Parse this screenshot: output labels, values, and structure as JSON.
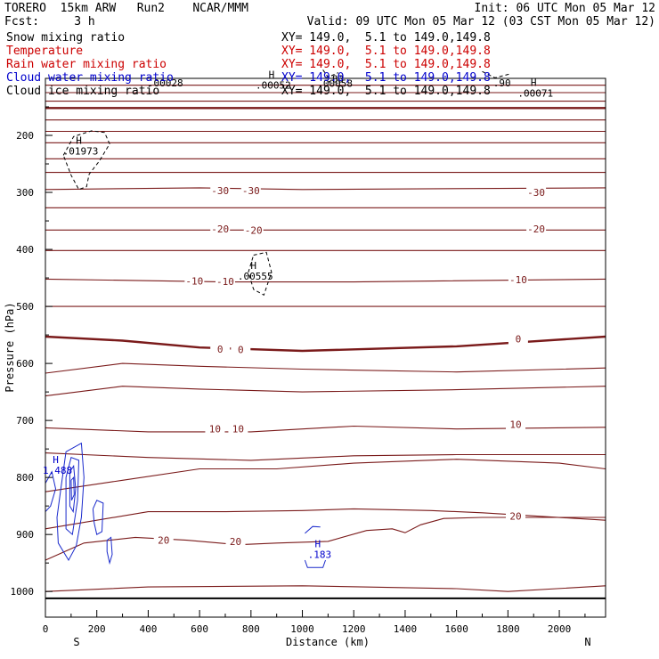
{
  "header": {
    "line1_left": "TORERO  15km ARW   Run2    NCAR/MMM",
    "line1_right": "Init: 06 UTC Mon 05 Mar 12",
    "line2_left": "Fcst:     3 h",
    "line2_right": "Valid: 09 UTC Mon 05 Mar 12 (03 CST Mon 05 Mar 12)"
  },
  "legend": [
    {
      "name": "Snow mixing ratio",
      "info": "XY= 149.0,  5.1 to 149.0,149.8",
      "color": "#000000"
    },
    {
      "name": "Temperature",
      "info": "XY= 149.0,  5.1 to 149.0,149.8",
      "color": "#cc0000"
    },
    {
      "name": "Rain water mixing ratio",
      "info": "XY= 149.0,  5.1 to 149.0,149.8",
      "color": "#cc0000"
    },
    {
      "name": "Cloud water mixing ratio",
      "info": "XY= 149.0,  5.1 to 149.0,149.8",
      "color": "#0000cc"
    },
    {
      "name": "Cloud ice mixing ratio",
      "info": "XY= 149.0,  5.1 to 149.0,149.8",
      "color": "#000000"
    }
  ],
  "colors": {
    "temperature": "#7a1a1a",
    "cloud_water": "#1a2acc",
    "ice": "#000000",
    "axis": "#000000"
  },
  "chart_data": {
    "type": "contour-cross-section",
    "xlabel": "Distance (km)",
    "ylabel": "Pressure (hPa)",
    "xlim": [
      0,
      2180
    ],
    "ylim": [
      1045,
      100
    ],
    "xticks": [
      0,
      200,
      400,
      600,
      800,
      1000,
      1200,
      1400,
      1600,
      1800,
      2000
    ],
    "yticks": [
      200,
      300,
      400,
      500,
      600,
      700,
      800,
      900,
      1000
    ],
    "end_labels": {
      "left": "S",
      "right": "N"
    },
    "temperature_lines": [
      {
        "pts": [
          [
            0,
            112
          ],
          [
            2180,
            112
          ]
        ]
      },
      {
        "pts": [
          [
            0,
            125
          ],
          [
            2180,
            125
          ]
        ]
      },
      {
        "pts": [
          [
            0,
            140
          ],
          [
            2180,
            140
          ]
        ]
      },
      {
        "pts": [
          [
            0,
            152
          ],
          [
            2180,
            152
          ]
        ],
        "bold": true
      },
      {
        "pts": [
          [
            0,
            173
          ],
          [
            2180,
            173
          ]
        ]
      },
      {
        "pts": [
          [
            0,
            193
          ],
          [
            2180,
            193
          ]
        ]
      },
      {
        "pts": [
          [
            0,
            213
          ],
          [
            2180,
            213
          ]
        ]
      },
      {
        "pts": [
          [
            0,
            241
          ],
          [
            2180,
            241
          ]
        ]
      },
      {
        "pts": [
          [
            0,
            265
          ],
          [
            2180,
            265
          ]
        ]
      },
      {
        "pts": [
          [
            0,
            295
          ],
          [
            600,
            292
          ],
          [
            1000,
            295
          ],
          [
            2180,
            292
          ]
        ],
        "value": -30
      },
      {
        "pts": [
          [
            0,
            327
          ],
          [
            2180,
            327
          ]
        ]
      },
      {
        "pts": [
          [
            0,
            366
          ],
          [
            2180,
            366
          ]
        ],
        "value": -20
      },
      {
        "pts": [
          [
            0,
            402
          ],
          [
            2180,
            402
          ]
        ]
      },
      {
        "pts": [
          [
            0,
            452
          ],
          [
            700,
            457
          ],
          [
            1200,
            457
          ],
          [
            2180,
            452
          ]
        ],
        "value": -10
      },
      {
        "pts": [
          [
            0,
            500
          ],
          [
            2180,
            500
          ]
        ]
      },
      {
        "pts": [
          [
            0,
            553
          ],
          [
            300,
            560
          ],
          [
            600,
            572
          ],
          [
            1000,
            578
          ],
          [
            1600,
            570
          ],
          [
            2180,
            553
          ]
        ],
        "bold": true,
        "value": 0
      },
      {
        "pts": [
          [
            0,
            617
          ],
          [
            300,
            600
          ],
          [
            600,
            605
          ],
          [
            1000,
            610
          ],
          [
            1600,
            615
          ],
          [
            2180,
            608
          ]
        ]
      },
      {
        "pts": [
          [
            0,
            657
          ],
          [
            300,
            640
          ],
          [
            600,
            645
          ],
          [
            1000,
            650
          ],
          [
            1600,
            646
          ],
          [
            2180,
            640
          ]
        ]
      },
      {
        "pts": [
          [
            0,
            713
          ],
          [
            400,
            720
          ],
          [
            800,
            720
          ],
          [
            1200,
            710
          ],
          [
            1600,
            715
          ],
          [
            2180,
            712
          ]
        ],
        "value": 10
      },
      {
        "pts": [
          [
            0,
            757
          ],
          [
            400,
            765
          ],
          [
            800,
            770
          ],
          [
            1200,
            762
          ],
          [
            1600,
            760
          ],
          [
            2180,
            760
          ]
        ]
      },
      {
        "pts": [
          [
            0,
            825
          ],
          [
            300,
            805
          ],
          [
            600,
            785
          ],
          [
            900,
            785
          ],
          [
            1200,
            775
          ],
          [
            1600,
            768
          ],
          [
            2000,
            775
          ],
          [
            2180,
            785
          ]
        ]
      },
      {
        "pts": [
          [
            0,
            890
          ],
          [
            400,
            860
          ],
          [
            700,
            860
          ],
          [
            1000,
            858
          ],
          [
            1200,
            855
          ],
          [
            1500,
            858
          ],
          [
            1700,
            862
          ],
          [
            2180,
            875
          ]
        ],
        "value": 20
      },
      {
        "pts": [
          [
            0,
            945
          ],
          [
            150,
            915
          ],
          [
            350,
            905
          ],
          [
            550,
            910
          ],
          [
            750,
            918
          ],
          [
            900,
            915
          ],
          [
            1100,
            912
          ],
          [
            1250,
            893
          ],
          [
            1350,
            890
          ],
          [
            1400,
            897
          ],
          [
            1460,
            883
          ],
          [
            1550,
            872
          ],
          [
            1700,
            870
          ],
          [
            2180,
            870
          ]
        ]
      },
      {
        "pts": [
          [
            0,
            1000
          ],
          [
            400,
            992
          ],
          [
            1000,
            990
          ],
          [
            1600,
            995
          ],
          [
            1800,
            1000
          ],
          [
            2180,
            990
          ]
        ]
      },
      {
        "pts": [
          [
            0,
            1012
          ],
          [
            2180,
            1012
          ]
        ],
        "black": true
      }
    ],
    "temperature_labels": [
      {
        "x": 680,
        "p": 297,
        "text": "-30"
      },
      {
        "x": 800,
        "p": 297,
        "text": "-30"
      },
      {
        "x": 1910,
        "p": 300,
        "text": "-30"
      },
      {
        "x": 680,
        "p": 364,
        "text": "-20"
      },
      {
        "x": 810,
        "p": 366,
        "text": "-20"
      },
      {
        "x": 1910,
        "p": 364,
        "text": "-20"
      },
      {
        "x": 580,
        "p": 455,
        "text": "-10"
      },
      {
        "x": 700,
        "p": 456,
        "text": "-10"
      },
      {
        "x": 1840,
        "p": 453,
        "text": "-10"
      },
      {
        "x": 680,
        "p": 575,
        "text": "0"
      },
      {
        "x": 760,
        "p": 576,
        "text": "0"
      },
      {
        "x": 1840,
        "p": 557,
        "text": "0"
      },
      {
        "x": 660,
        "p": 715,
        "text": "10"
      },
      {
        "x": 750,
        "p": 715,
        "text": "10"
      },
      {
        "x": 1830,
        "p": 707,
        "text": "10"
      },
      {
        "x": 460,
        "p": 910,
        "text": "20"
      },
      {
        "x": 740,
        "p": 912,
        "text": "20"
      },
      {
        "x": 1830,
        "p": 868,
        "text": "20"
      }
    ],
    "extrema": [
      {
        "x": 130,
        "p": 215,
        "label": "H",
        "value": ".01973",
        "color": "#000000"
      },
      {
        "x": 810,
        "p": 434,
        "label": "H",
        "value": ".00555",
        "color": "#000000"
      },
      {
        "x": 40,
        "p": 775,
        "label": "H",
        "value": "1.488",
        "color": "#0000cc"
      },
      {
        "x": 1060,
        "p": 922,
        "label": "H",
        "value": ".183",
        "color": "#0000cc"
      },
      {
        "x": 880,
        "p": 99,
        "label": "H",
        "value": ".00052",
        "color": "#000000"
      },
      {
        "x": 1900,
        "p": 113,
        "label": "H",
        "value": ".00071",
        "color": "#000000"
      },
      {
        "x": 460,
        "p": 95,
        "label": "",
        "value": ".00028",
        "color": "#000000"
      },
      {
        "x": 1120,
        "p": 96,
        "label": "",
        "value": ".00058",
        "color": "#000000"
      },
      {
        "x": 1120,
        "p": 88,
        "label": "",
        "value": ".83",
        "color": "#000000"
      },
      {
        "x": 1770,
        "p": 95,
        "label": "",
        "value": ".90",
        "color": "#000000"
      }
    ],
    "ice_contours": [
      {
        "pts": [
          [
            70,
            235
          ],
          [
            110,
            202
          ],
          [
            180,
            192
          ],
          [
            230,
            195
          ],
          [
            250,
            215
          ],
          [
            210,
            245
          ],
          [
            170,
            268
          ],
          [
            160,
            290
          ],
          [
            130,
            295
          ],
          [
            100,
            270
          ],
          [
            70,
            235
          ]
        ]
      },
      {
        "pts": [
          [
            810,
            410
          ],
          [
            860,
            405
          ],
          [
            880,
            440
          ],
          [
            850,
            480
          ],
          [
            810,
            470
          ],
          [
            790,
            440
          ],
          [
            810,
            410
          ]
        ]
      },
      {
        "pts": [
          [
            1080,
            85
          ],
          [
            1100,
            98
          ],
          [
            1140,
            90
          ]
        ]
      },
      {
        "pts": [
          [
            1700,
            88
          ],
          [
            1750,
            99
          ],
          [
            1810,
            92
          ]
        ]
      }
    ],
    "cloud_water_contours": [
      {
        "pts": [
          [
            60,
            820
          ],
          [
            80,
            755
          ],
          [
            140,
            740
          ],
          [
            150,
            800
          ],
          [
            140,
            870
          ],
          [
            120,
            920
          ],
          [
            90,
            945
          ],
          [
            50,
            915
          ],
          [
            45,
            870
          ],
          [
            60,
            820
          ]
        ]
      },
      {
        "pts": [
          [
            80,
            800
          ],
          [
            100,
            765
          ],
          [
            130,
            770
          ],
          [
            125,
            840
          ],
          [
            105,
            900
          ],
          [
            80,
            890
          ],
          [
            80,
            800
          ]
        ]
      },
      {
        "pts": [
          [
            95,
            790
          ],
          [
            110,
            780
          ],
          [
            118,
            820
          ],
          [
            108,
            860
          ],
          [
            95,
            850
          ],
          [
            95,
            790
          ]
        ]
      },
      {
        "pts": [
          [
            100,
            805
          ],
          [
            110,
            800
          ],
          [
            112,
            830
          ],
          [
            102,
            840
          ],
          [
            100,
            805
          ]
        ]
      },
      {
        "pts": [
          [
            0,
            810
          ],
          [
            25,
            790
          ],
          [
            40,
            820
          ],
          [
            20,
            850
          ],
          [
            0,
            860
          ]
        ]
      },
      {
        "pts": [
          [
            185,
            855
          ],
          [
            200,
            840
          ],
          [
            225,
            845
          ],
          [
            220,
            895
          ],
          [
            200,
            900
          ],
          [
            190,
            880
          ],
          [
            185,
            855
          ]
        ]
      },
      {
        "pts": [
          [
            240,
            910
          ],
          [
            255,
            905
          ],
          [
            260,
            935
          ],
          [
            250,
            950
          ],
          [
            240,
            930
          ],
          [
            240,
            910
          ]
        ]
      },
      {
        "pts": [
          [
            1010,
            945
          ],
          [
            1020,
            958
          ],
          [
            1080,
            958
          ],
          [
            1090,
            945
          ]
        ]
      },
      {
        "pts": [
          [
            1010,
            898
          ],
          [
            1040,
            886
          ],
          [
            1070,
            887
          ]
        ]
      }
    ]
  }
}
